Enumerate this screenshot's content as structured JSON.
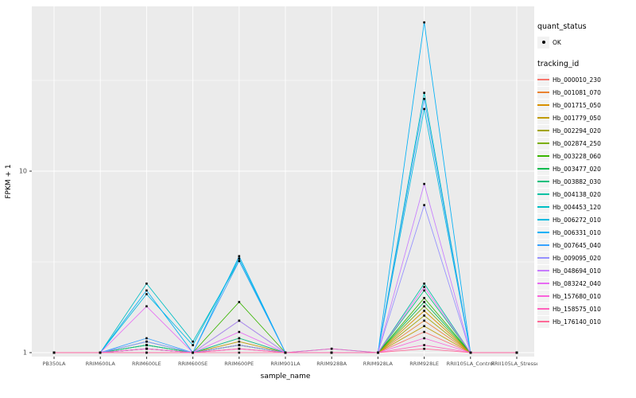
{
  "figure": {
    "background": "#FFFFFF",
    "panel_background": "#EBEBEB",
    "gridline_color": "#FFFFFF",
    "tick_label_color": "#4D4D4D",
    "marker_color": "#000000"
  },
  "axes": {
    "x_label": "sample_name",
    "y_label": "FPKM + 1",
    "y_tick_labels": [
      "1",
      "10"
    ],
    "y_tick_values": [
      1,
      10
    ],
    "y_scale": "log10"
  },
  "legend": {
    "quant_status_title": "quant_status",
    "ok_label": "OK",
    "tracking_id_title": "tracking_id"
  },
  "chart_data": {
    "type": "line",
    "title": "",
    "xlabel": "sample_name",
    "ylabel": "FPKM + 1",
    "y_scale": "log10",
    "ylim": [
      1,
      80
    ],
    "grid": true,
    "legend_position": "right",
    "categories": [
      "PB350LA",
      "RRIM600LA",
      "RRIM600LE",
      "RRIM600SE",
      "RRIM600PE",
      "RRIM901LA",
      "RRIM928BA",
      "RRIM928LA",
      "RRIM928LE",
      "RRII105LA_Control",
      "RRII105LA_Stressed"
    ],
    "series": [
      {
        "name": "Hb_000010_230",
        "color": "#F8766D",
        "values": [
          1,
          1,
          1.05,
          1,
          1.1,
          1,
          1,
          1,
          1.3,
          1,
          1
        ]
      },
      {
        "name": "Hb_001081_070",
        "color": "#EA8331",
        "values": [
          1,
          1,
          1.05,
          1,
          1.1,
          1,
          1,
          1,
          1.5,
          1,
          1
        ]
      },
      {
        "name": "Hb_001715_050",
        "color": "#D89000",
        "values": [
          1,
          1,
          1.1,
          1,
          1.05,
          1,
          1,
          1,
          1.7,
          1,
          1
        ]
      },
      {
        "name": "Hb_001779_050",
        "color": "#C09B00",
        "values": [
          1,
          1,
          1.05,
          1,
          1.15,
          1,
          1,
          1,
          1.4,
          1,
          1
        ]
      },
      {
        "name": "Hb_002294_020",
        "color": "#A3A500",
        "values": [
          1,
          1,
          1.05,
          1,
          1.1,
          1,
          1,
          1,
          1.6,
          1,
          1
        ]
      },
      {
        "name": "Hb_002874_250",
        "color": "#7CAE00",
        "values": [
          1,
          1,
          1.1,
          1,
          1.2,
          1,
          1,
          1,
          1.8,
          1,
          1
        ]
      },
      {
        "name": "Hb_003228_060",
        "color": "#39B600",
        "values": [
          1,
          1,
          1.1,
          1,
          1.9,
          1,
          1,
          1,
          2.0,
          1,
          1
        ]
      },
      {
        "name": "Hb_003477_020",
        "color": "#00BB4E",
        "values": [
          1,
          1,
          1.05,
          1,
          1.1,
          1,
          1,
          1,
          1.9,
          1,
          1
        ]
      },
      {
        "name": "Hb_003882_030",
        "color": "#00BF7D",
        "values": [
          1,
          1,
          1.15,
          1,
          1.5,
          1,
          1,
          1,
          2.2,
          1,
          1
        ]
      },
      {
        "name": "Hb_004138_020",
        "color": "#00C1A3",
        "values": [
          1,
          1,
          1.1,
          1,
          1.2,
          1,
          1,
          1,
          2.4,
          1,
          1
        ]
      },
      {
        "name": "Hb_004453_120",
        "color": "#00BFC4",
        "values": [
          1,
          1,
          2.4,
          1.15,
          3.2,
          1,
          1,
          1,
          27,
          1,
          1
        ]
      },
      {
        "name": "Hb_006272_010",
        "color": "#00BAE0",
        "values": [
          1,
          1,
          2.1,
          1.1,
          3.3,
          1,
          1,
          1,
          22,
          1,
          1
        ]
      },
      {
        "name": "Hb_006331_010",
        "color": "#00B0F6",
        "values": [
          1,
          1,
          2.2,
          1,
          3.4,
          1,
          1.05,
          1,
          66,
          1,
          1
        ]
      },
      {
        "name": "Hb_007645_040",
        "color": "#35A2FF",
        "values": [
          1,
          1,
          1.2,
          1,
          3.2,
          1,
          1,
          1,
          25,
          1,
          1
        ]
      },
      {
        "name": "Hb_009095_020",
        "color": "#9590FF",
        "values": [
          1,
          1,
          1.15,
          1,
          1.1,
          1,
          1,
          1,
          6.5,
          1,
          1
        ]
      },
      {
        "name": "Hb_048694_010",
        "color": "#C77CFF",
        "values": [
          1,
          1,
          1.05,
          1,
          1.5,
          1,
          1,
          1,
          8.5,
          1,
          1
        ]
      },
      {
        "name": "Hb_083242_040",
        "color": "#E76BF3",
        "values": [
          1,
          1,
          1.8,
          1,
          1.3,
          1,
          1,
          1,
          2.3,
          1,
          1
        ]
      },
      {
        "name": "Hb_157680_010",
        "color": "#FA62DB",
        "values": [
          1,
          1,
          1.05,
          1,
          1.05,
          1,
          1,
          1,
          1.2,
          1,
          1
        ]
      },
      {
        "name": "Hb_158575_010",
        "color": "#FF62BC",
        "values": [
          1,
          1,
          1,
          1,
          1.05,
          1,
          1.05,
          1,
          1.1,
          1,
          1
        ]
      },
      {
        "name": "Hb_176140_010",
        "color": "#FF6A98",
        "values": [
          1,
          1,
          1,
          1,
          1,
          1,
          1,
          1,
          1.05,
          1,
          1
        ]
      }
    ]
  }
}
